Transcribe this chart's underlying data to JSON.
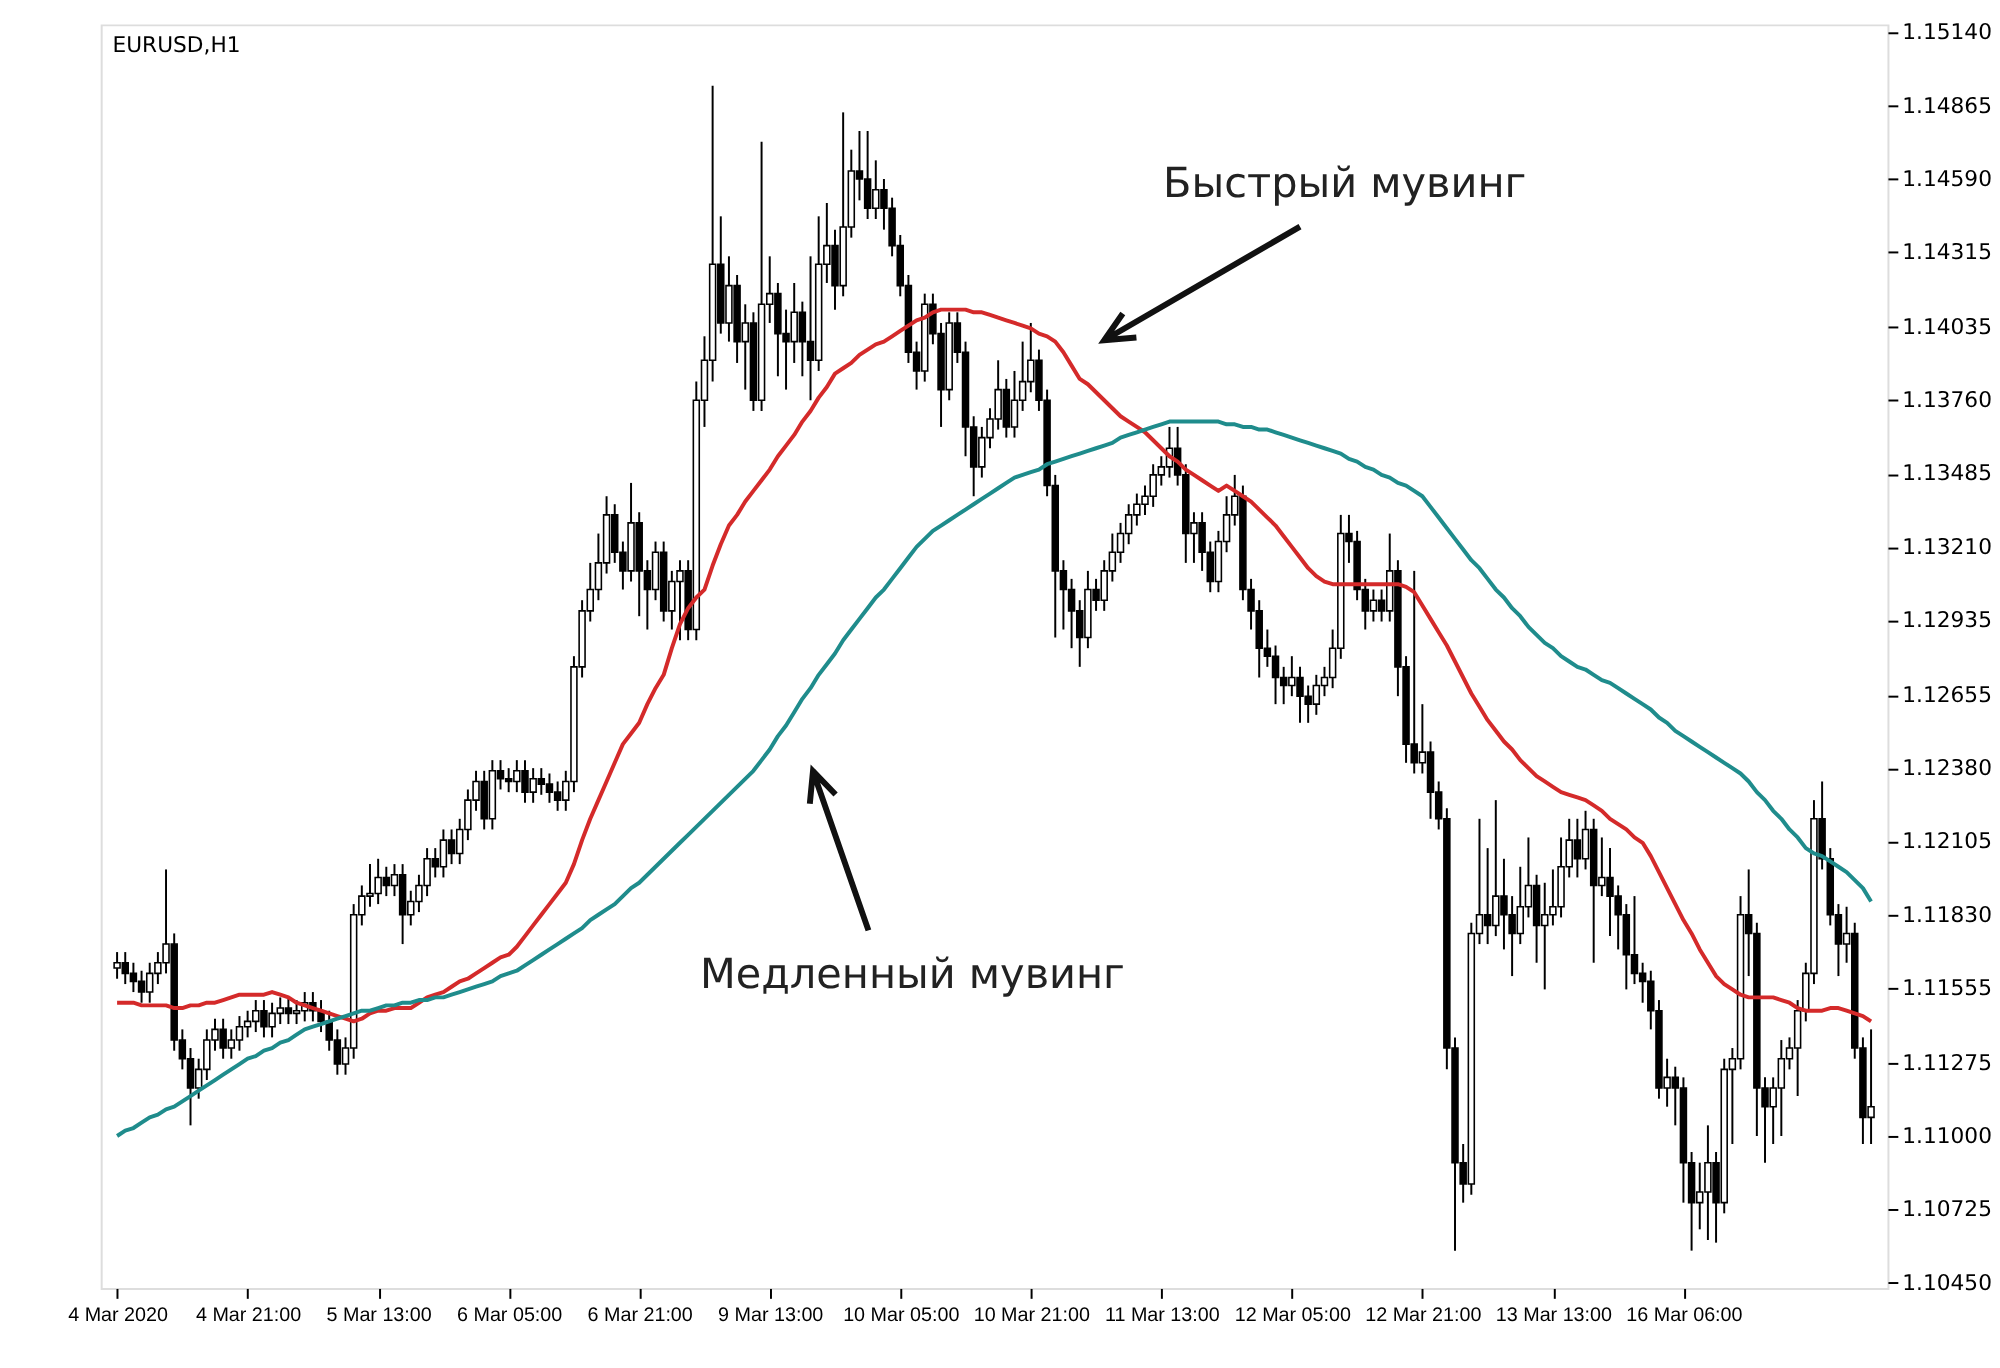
{
  "chart_data": {
    "type": "candlestick",
    "title": "EURUSD,H1",
    "annotations": [
      "Быстрый мувинг",
      "Медленный мувинг"
    ],
    "categories": [
      "4 Mar 2020",
      null,
      null,
      null,
      null,
      null,
      null,
      null,
      null,
      null,
      null,
      null,
      null,
      null,
      null,
      null,
      "4 Mar 21:00",
      null,
      null,
      null,
      null,
      null,
      null,
      null,
      null,
      null,
      null,
      null,
      null,
      null,
      null,
      null,
      "5 Mar 13:00",
      null,
      null,
      null,
      null,
      null,
      null,
      null,
      null,
      null,
      null,
      null,
      null,
      null,
      null,
      null,
      "6 Mar 05:00",
      null,
      null,
      null,
      null,
      null,
      null,
      null,
      null,
      null,
      null,
      null,
      null,
      null,
      null,
      null,
      "6 Mar 21:00",
      null,
      null,
      null,
      null,
      null,
      null,
      null,
      null,
      null,
      null,
      null,
      null,
      null,
      null,
      null,
      "9 Mar 13:00",
      null,
      null,
      null,
      null,
      null,
      null,
      null,
      null,
      null,
      null,
      null,
      null,
      null,
      null,
      null,
      "10 Mar 05:00",
      null,
      null,
      null,
      null,
      null,
      null,
      null,
      null,
      null,
      null,
      null,
      null,
      null,
      null,
      null,
      "10 Mar 21:00",
      null,
      null,
      null,
      null,
      null,
      null,
      null,
      null,
      null,
      null,
      null,
      null,
      null,
      null,
      null,
      "11 Mar 13:00",
      null,
      null,
      null,
      null,
      null,
      null,
      null,
      null,
      null,
      null,
      null,
      null,
      null,
      null,
      null,
      "12 Mar 05:00",
      null,
      null,
      null,
      null,
      null,
      null,
      null,
      null,
      null,
      null,
      null,
      null,
      null,
      null,
      null,
      "12 Mar 21:00",
      null,
      null,
      null,
      null,
      null,
      null,
      null,
      null,
      null,
      null,
      null,
      null,
      null,
      null,
      null,
      "13 Mar 13:00",
      null,
      null,
      null,
      null,
      null,
      null,
      null,
      null,
      null,
      null,
      null,
      null,
      null,
      null,
      null,
      "16 Mar 06:00",
      null,
      null,
      null,
      null,
      null,
      null,
      null,
      null,
      null,
      null,
      null,
      null,
      null,
      null,
      null,
      null,
      null,
      null,
      null,
      null,
      null,
      null,
      null
    ],
    "ohlc": [
      [
        1.1163,
        1.1169,
        1.1159,
        1.1165
      ],
      [
        1.1165,
        1.1169,
        1.1157,
        1.1161
      ],
      [
        1.1161,
        1.1165,
        1.1154,
        1.1158
      ],
      [
        1.1158,
        1.1162,
        1.115,
        1.1154
      ],
      [
        1.1154,
        1.1165,
        1.115,
        1.1161
      ],
      [
        1.1161,
        1.1169,
        1.1157,
        1.1165
      ],
      [
        1.1165,
        1.12,
        1.1161,
        1.1172
      ],
      [
        1.1172,
        1.1176,
        1.1132,
        1.1136
      ],
      [
        1.1136,
        1.114,
        1.1125,
        1.1129
      ],
      [
        1.1129,
        1.1133,
        1.1104,
        1.1118
      ],
      [
        1.1118,
        1.1129,
        1.1114,
        1.1125
      ],
      [
        1.1125,
        1.114,
        1.1121,
        1.1136
      ],
      [
        1.1136,
        1.1144,
        1.1132,
        1.114
      ],
      [
        1.114,
        1.1144,
        1.1129,
        1.1133
      ],
      [
        1.1133,
        1.114,
        1.1129,
        1.1136
      ],
      [
        1.1136,
        1.1145,
        1.1132,
        1.1141
      ],
      [
        1.1141,
        1.1147,
        1.1137,
        1.1143
      ],
      [
        1.1143,
        1.1151,
        1.1139,
        1.1147
      ],
      [
        1.1147,
        1.1151,
        1.1137,
        1.1141
      ],
      [
        1.1141,
        1.115,
        1.1137,
        1.1146
      ],
      [
        1.1146,
        1.1152,
        1.1142,
        1.1148
      ],
      [
        1.1148,
        1.1152,
        1.1142,
        1.1146
      ],
      [
        1.1146,
        1.1151,
        1.1142,
        1.1147
      ],
      [
        1.1147,
        1.1154,
        1.1143,
        1.115
      ],
      [
        1.115,
        1.1154,
        1.1143,
        1.1147
      ],
      [
        1.1147,
        1.1151,
        1.1139,
        1.1143
      ],
      [
        1.1143,
        1.1147,
        1.1132,
        1.1136
      ],
      [
        1.1136,
        1.114,
        1.1123,
        1.1127
      ],
      [
        1.1127,
        1.1137,
        1.1123,
        1.1133
      ],
      [
        1.1133,
        1.1187,
        1.1129,
        1.1183
      ],
      [
        1.1183,
        1.1194,
        1.1179,
        1.119
      ],
      [
        1.119,
        1.1202,
        1.1186,
        1.1191
      ],
      [
        1.1191,
        1.1204,
        1.1187,
        1.1197
      ],
      [
        1.1197,
        1.1201,
        1.119,
        1.1194
      ],
      [
        1.1194,
        1.1202,
        1.119,
        1.1198
      ],
      [
        1.1198,
        1.1202,
        1.1172,
        1.1183
      ],
      [
        1.1183,
        1.1192,
        1.1179,
        1.1188
      ],
      [
        1.1188,
        1.1198,
        1.1184,
        1.1194
      ],
      [
        1.1194,
        1.1208,
        1.119,
        1.1204
      ],
      [
        1.1204,
        1.1208,
        1.1197,
        1.1201
      ],
      [
        1.1201,
        1.1215,
        1.1197,
        1.1211
      ],
      [
        1.1211,
        1.1215,
        1.1202,
        1.1206
      ],
      [
        1.1206,
        1.1219,
        1.1202,
        1.1215
      ],
      [
        1.1215,
        1.123,
        1.1211,
        1.1226
      ],
      [
        1.1226,
        1.1237,
        1.1222,
        1.1233
      ],
      [
        1.1233,
        1.1237,
        1.1215,
        1.1219
      ],
      [
        1.1219,
        1.1241,
        1.1215,
        1.1237
      ],
      [
        1.1237,
        1.1241,
        1.123,
        1.1234
      ],
      [
        1.1234,
        1.1238,
        1.1229,
        1.1233
      ],
      [
        1.1233,
        1.1241,
        1.1229,
        1.1237
      ],
      [
        1.1237,
        1.1241,
        1.1225,
        1.1229
      ],
      [
        1.1229,
        1.1238,
        1.1225,
        1.1234
      ],
      [
        1.1234,
        1.1238,
        1.1228,
        1.1232
      ],
      [
        1.1232,
        1.1236,
        1.1225,
        1.1229
      ],
      [
        1.1229,
        1.1233,
        1.1222,
        1.1226
      ],
      [
        1.1226,
        1.1237,
        1.1222,
        1.1233
      ],
      [
        1.1233,
        1.128,
        1.1229,
        1.1276
      ],
      [
        1.1276,
        1.1301,
        1.1272,
        1.1297
      ],
      [
        1.1297,
        1.1315,
        1.1293,
        1.1305
      ],
      [
        1.1305,
        1.1326,
        1.1301,
        1.1315
      ],
      [
        1.1315,
        1.134,
        1.1311,
        1.1333
      ],
      [
        1.1333,
        1.1337,
        1.1315,
        1.1319
      ],
      [
        1.1319,
        1.1323,
        1.1305,
        1.1312
      ],
      [
        1.1312,
        1.1345,
        1.1308,
        1.133
      ],
      [
        1.133,
        1.1334,
        1.1295,
        1.1312
      ],
      [
        1.1312,
        1.1316,
        1.129,
        1.1305
      ],
      [
        1.1305,
        1.1323,
        1.1301,
        1.1319
      ],
      [
        1.1319,
        1.1323,
        1.1293,
        1.1297
      ],
      [
        1.1297,
        1.1312,
        1.129,
        1.1308
      ],
      [
        1.1308,
        1.1316,
        1.1286,
        1.1312
      ],
      [
        1.1312,
        1.1316,
        1.1286,
        1.129
      ],
      [
        1.129,
        1.1383,
        1.1286,
        1.1376
      ],
      [
        1.1376,
        1.14,
        1.1366,
        1.1391
      ],
      [
        1.1391,
        1.1494,
        1.1383,
        1.1427
      ],
      [
        1.1427,
        1.1445,
        1.1401,
        1.1405
      ],
      [
        1.1405,
        1.143,
        1.1398,
        1.1419
      ],
      [
        1.1419,
        1.1423,
        1.139,
        1.1398
      ],
      [
        1.1398,
        1.1412,
        1.138,
        1.1405
      ],
      [
        1.1405,
        1.1409,
        1.1372,
        1.1376
      ],
      [
        1.1376,
        1.1473,
        1.1372,
        1.1412
      ],
      [
        1.1412,
        1.143,
        1.1405,
        1.1416
      ],
      [
        1.1416,
        1.142,
        1.1385,
        1.1401
      ],
      [
        1.1401,
        1.141,
        1.138,
        1.1398
      ],
      [
        1.1398,
        1.142,
        1.139,
        1.1409
      ],
      [
        1.1409,
        1.1413,
        1.1385,
        1.1398
      ],
      [
        1.1398,
        1.143,
        1.1376,
        1.1391
      ],
      [
        1.1391,
        1.1445,
        1.1387,
        1.1427
      ],
      [
        1.1427,
        1.145,
        1.142,
        1.1434
      ],
      [
        1.1434,
        1.144,
        1.141,
        1.1419
      ],
      [
        1.1419,
        1.1484,
        1.1415,
        1.1441
      ],
      [
        1.1441,
        1.147,
        1.1437,
        1.1462
      ],
      [
        1.1462,
        1.1477,
        1.1451,
        1.1459
      ],
      [
        1.1459,
        1.1477,
        1.1444,
        1.1448
      ],
      [
        1.1448,
        1.1466,
        1.1444,
        1.1455
      ],
      [
        1.1455,
        1.1459,
        1.144,
        1.1448
      ],
      [
        1.1448,
        1.1452,
        1.143,
        1.1434
      ],
      [
        1.1434,
        1.1438,
        1.1415,
        1.1419
      ],
      [
        1.1419,
        1.1423,
        1.139,
        1.1394
      ],
      [
        1.1394,
        1.1398,
        1.138,
        1.1387
      ],
      [
        1.1387,
        1.1416,
        1.1383,
        1.1412
      ],
      [
        1.1412,
        1.1416,
        1.1397,
        1.1401
      ],
      [
        1.1401,
        1.1405,
        1.1366,
        1.138
      ],
      [
        1.138,
        1.1409,
        1.1376,
        1.1405
      ],
      [
        1.1405,
        1.1409,
        1.139,
        1.1394
      ],
      [
        1.1394,
        1.1398,
        1.1355,
        1.1366
      ],
      [
        1.1366,
        1.137,
        1.134,
        1.1351
      ],
      [
        1.1351,
        1.1366,
        1.1347,
        1.1362
      ],
      [
        1.1362,
        1.1373,
        1.1358,
        1.1369
      ],
      [
        1.1369,
        1.1391,
        1.1365,
        1.138
      ],
      [
        1.138,
        1.1384,
        1.1362,
        1.1366
      ],
      [
        1.1366,
        1.1387,
        1.1362,
        1.1376
      ],
      [
        1.1376,
        1.1398,
        1.1372,
        1.1383
      ],
      [
        1.1383,
        1.1405,
        1.1379,
        1.1391
      ],
      [
        1.1391,
        1.1395,
        1.1372,
        1.1376
      ],
      [
        1.1376,
        1.138,
        1.134,
        1.1344
      ],
      [
        1.1344,
        1.1348,
        1.1287,
        1.1312
      ],
      [
        1.1312,
        1.1316,
        1.129,
        1.1305
      ],
      [
        1.1305,
        1.1309,
        1.1283,
        1.1297
      ],
      [
        1.1297,
        1.1301,
        1.1276,
        1.1287
      ],
      [
        1.1287,
        1.1312,
        1.1283,
        1.1305
      ],
      [
        1.1305,
        1.1309,
        1.1297,
        1.1301
      ],
      [
        1.1301,
        1.1316,
        1.1297,
        1.1312
      ],
      [
        1.1312,
        1.1326,
        1.1308,
        1.1319
      ],
      [
        1.1319,
        1.133,
        1.1315,
        1.1326
      ],
      [
        1.1326,
        1.1337,
        1.1322,
        1.1333
      ],
      [
        1.1333,
        1.1341,
        1.1329,
        1.1337
      ],
      [
        1.1337,
        1.1344,
        1.1333,
        1.134
      ],
      [
        1.134,
        1.1352,
        1.1336,
        1.1348
      ],
      [
        1.1348,
        1.1355,
        1.1344,
        1.1351
      ],
      [
        1.1351,
        1.1366,
        1.1347,
        1.1358
      ],
      [
        1.1358,
        1.1366,
        1.1344,
        1.1348
      ],
      [
        1.1348,
        1.1352,
        1.1315,
        1.1326
      ],
      [
        1.1326,
        1.1334,
        1.1315,
        1.133
      ],
      [
        1.133,
        1.1334,
        1.1312,
        1.1319
      ],
      [
        1.1319,
        1.1323,
        1.1304,
        1.1308
      ],
      [
        1.1308,
        1.1327,
        1.1304,
        1.1323
      ],
      [
        1.1323,
        1.134,
        1.1319,
        1.1333
      ],
      [
        1.1333,
        1.1348,
        1.1329,
        1.134
      ],
      [
        1.134,
        1.1344,
        1.1301,
        1.1305
      ],
      [
        1.1305,
        1.1309,
        1.129,
        1.1297
      ],
      [
        1.1297,
        1.1301,
        1.1272,
        1.1283
      ],
      [
        1.1283,
        1.129,
        1.1276,
        1.128
      ],
      [
        1.128,
        1.1284,
        1.1262,
        1.1272
      ],
      [
        1.1272,
        1.1276,
        1.1262,
        1.1269
      ],
      [
        1.1269,
        1.128,
        1.1265,
        1.1272
      ],
      [
        1.1272,
        1.1276,
        1.1255,
        1.1265
      ],
      [
        1.1265,
        1.1269,
        1.1255,
        1.1262
      ],
      [
        1.1262,
        1.1273,
        1.1258,
        1.1269
      ],
      [
        1.1269,
        1.1276,
        1.1265,
        1.1272
      ],
      [
        1.1272,
        1.129,
        1.1268,
        1.1283
      ],
      [
        1.1283,
        1.1333,
        1.1279,
        1.1326
      ],
      [
        1.1326,
        1.1333,
        1.1315,
        1.1323
      ],
      [
        1.1323,
        1.1327,
        1.1301,
        1.1305
      ],
      [
        1.1305,
        1.1309,
        1.129,
        1.1297
      ],
      [
        1.1297,
        1.1305,
        1.1293,
        1.1301
      ],
      [
        1.1301,
        1.1305,
        1.1293,
        1.1297
      ],
      [
        1.1297,
        1.1326,
        1.1293,
        1.1312
      ],
      [
        1.1312,
        1.1316,
        1.1265,
        1.1276
      ],
      [
        1.1276,
        1.128,
        1.124,
        1.1247
      ],
      [
        1.1247,
        1.1312,
        1.1236,
        1.124
      ],
      [
        1.124,
        1.1262,
        1.1236,
        1.1244
      ],
      [
        1.1244,
        1.1248,
        1.1219,
        1.1229
      ],
      [
        1.1229,
        1.1233,
        1.1215,
        1.1219
      ],
      [
        1.1219,
        1.1223,
        1.1125,
        1.1133
      ],
      [
        1.1133,
        1.1137,
        1.1057,
        1.109
      ],
      [
        1.109,
        1.1097,
        1.1075,
        1.1082
      ],
      [
        1.1082,
        1.118,
        1.1078,
        1.1176
      ],
      [
        1.1176,
        1.1219,
        1.1172,
        1.1183
      ],
      [
        1.1183,
        1.1208,
        1.1172,
        1.1179
      ],
      [
        1.1179,
        1.1226,
        1.1175,
        1.119
      ],
      [
        1.119,
        1.1204,
        1.117,
        1.1183
      ],
      [
        1.1183,
        1.119,
        1.116,
        1.1176
      ],
      [
        1.1176,
        1.1201,
        1.1172,
        1.1186
      ],
      [
        1.1186,
        1.1212,
        1.1182,
        1.1194
      ],
      [
        1.1194,
        1.1198,
        1.1165,
        1.1179
      ],
      [
        1.1179,
        1.1195,
        1.1155,
        1.1183
      ],
      [
        1.1183,
        1.12,
        1.1179,
        1.1186
      ],
      [
        1.1186,
        1.1212,
        1.1182,
        1.1201
      ],
      [
        1.1201,
        1.1219,
        1.1197,
        1.1211
      ],
      [
        1.1211,
        1.1219,
        1.1197,
        1.1204
      ],
      [
        1.1204,
        1.1222,
        1.12,
        1.1215
      ],
      [
        1.1215,
        1.1219,
        1.1165,
        1.1194
      ],
      [
        1.1194,
        1.1212,
        1.119,
        1.1197
      ],
      [
        1.1197,
        1.1208,
        1.1175,
        1.119
      ],
      [
        1.119,
        1.1194,
        1.117,
        1.1183
      ],
      [
        1.1183,
        1.1187,
        1.1155,
        1.1168
      ],
      [
        1.1168,
        1.119,
        1.1157,
        1.1161
      ],
      [
        1.1161,
        1.1165,
        1.115,
        1.1158
      ],
      [
        1.1158,
        1.1162,
        1.114,
        1.1147
      ],
      [
        1.1147,
        1.1151,
        1.1114,
        1.1118
      ],
      [
        1.1118,
        1.1129,
        1.1111,
        1.1122
      ],
      [
        1.1122,
        1.1126,
        1.1104,
        1.1118
      ],
      [
        1.1118,
        1.1122,
        1.1075,
        1.109
      ],
      [
        1.109,
        1.1094,
        1.1057,
        1.1075
      ],
      [
        1.1075,
        1.109,
        1.1065,
        1.1079
      ],
      [
        1.1079,
        1.1104,
        1.1061,
        1.109
      ],
      [
        1.109,
        1.1094,
        1.106,
        1.1075
      ],
      [
        1.1075,
        1.1129,
        1.1071,
        1.1125
      ],
      [
        1.1125,
        1.1133,
        1.1097,
        1.1129
      ],
      [
        1.1129,
        1.119,
        1.1125,
        1.1183
      ],
      [
        1.1183,
        1.12,
        1.116,
        1.1176
      ],
      [
        1.1176,
        1.118,
        1.11,
        1.1118
      ],
      [
        1.1118,
        1.1122,
        1.109,
        1.1111
      ],
      [
        1.1111,
        1.1122,
        1.1097,
        1.1118
      ],
      [
        1.1118,
        1.1136,
        1.11,
        1.1129
      ],
      [
        1.1129,
        1.1137,
        1.1125,
        1.1133
      ],
      [
        1.1133,
        1.1151,
        1.1115,
        1.1147
      ],
      [
        1.1147,
        1.1165,
        1.1143,
        1.1161
      ],
      [
        1.1161,
        1.1226,
        1.1157,
        1.1219
      ],
      [
        1.1219,
        1.1233,
        1.12,
        1.1204
      ],
      [
        1.1204,
        1.1208,
        1.1179,
        1.1183
      ],
      [
        1.1183,
        1.1187,
        1.116,
        1.1172
      ],
      [
        1.1172,
        1.1186,
        1.1165,
        1.1176
      ],
      [
        1.1176,
        1.118,
        1.1129,
        1.1133
      ],
      [
        1.1133,
        1.1137,
        1.1097,
        1.1107
      ],
      [
        1.1107,
        1.114,
        1.1097,
        1.1111
      ]
    ],
    "series": [
      {
        "type": "line",
        "color": "#d42a2a",
        "values": [
          1.115,
          1.115,
          1.115,
          1.1149,
          1.1149,
          1.1149,
          1.1149,
          1.1148,
          1.1148,
          1.1149,
          1.1149,
          1.115,
          1.115,
          1.1151,
          1.1152,
          1.1153,
          1.1153,
          1.1153,
          1.1153,
          1.1154,
          1.1153,
          1.1152,
          1.115,
          1.1149,
          1.1148,
          1.1147,
          1.1146,
          1.1145,
          1.1144,
          1.1143,
          1.1144,
          1.1146,
          1.1147,
          1.1147,
          1.1148,
          1.1148,
          1.1148,
          1.115,
          1.1152,
          1.1153,
          1.1154,
          1.1156,
          1.1158,
          1.1159,
          1.1161,
          1.1163,
          1.1165,
          1.1167,
          1.1168,
          1.1171,
          1.1175,
          1.1179,
          1.1183,
          1.1187,
          1.1191,
          1.1195,
          1.1202,
          1.1211,
          1.1219,
          1.1226,
          1.1233,
          1.124,
          1.1247,
          1.1251,
          1.1255,
          1.1262,
          1.1268,
          1.1273,
          1.1283,
          1.1292,
          1.1298,
          1.1302,
          1.1305,
          1.1314,
          1.1322,
          1.1329,
          1.1333,
          1.1338,
          1.1342,
          1.1346,
          1.135,
          1.1355,
          1.1359,
          1.1363,
          1.1368,
          1.1372,
          1.1377,
          1.1381,
          1.1386,
          1.1388,
          1.139,
          1.1393,
          1.1395,
          1.1397,
          1.1398,
          1.14,
          1.1402,
          1.1404,
          1.1406,
          1.1407,
          1.1409,
          1.141,
          1.141,
          1.141,
          1.141,
          1.1409,
          1.1409,
          1.1408,
          1.1407,
          1.1406,
          1.1405,
          1.1404,
          1.1403,
          1.1401,
          1.14,
          1.1398,
          1.1394,
          1.1389,
          1.1384,
          1.1382,
          1.1379,
          1.1376,
          1.1373,
          1.137,
          1.1368,
          1.1366,
          1.1364,
          1.1361,
          1.1358,
          1.1355,
          1.1353,
          1.135,
          1.1348,
          1.1346,
          1.1344,
          1.1342,
          1.1344,
          1.1342,
          1.134,
          1.1338,
          1.1335,
          1.1332,
          1.1329,
          1.1325,
          1.1321,
          1.1317,
          1.1313,
          1.131,
          1.1308,
          1.1307,
          1.1307,
          1.1307,
          1.1307,
          1.1307,
          1.1307,
          1.1307,
          1.1307,
          1.1307,
          1.1306,
          1.1304,
          1.1299,
          1.1294,
          1.1289,
          1.1284,
          1.1278,
          1.1272,
          1.1266,
          1.1261,
          1.1256,
          1.1252,
          1.1248,
          1.1245,
          1.1241,
          1.1238,
          1.1235,
          1.1233,
          1.1231,
          1.1229,
          1.1228,
          1.1227,
          1.1226,
          1.1224,
          1.1222,
          1.1219,
          1.1217,
          1.1215,
          1.1212,
          1.121,
          1.1205,
          1.1199,
          1.1193,
          1.1187,
          1.1181,
          1.1176,
          1.117,
          1.1165,
          1.116,
          1.1157,
          1.1155,
          1.1153,
          1.1152,
          1.1152,
          1.1152,
          1.1152,
          1.1151,
          1.115,
          1.1148,
          1.1147,
          1.1147,
          1.1147,
          1.1148,
          1.1148,
          1.1147,
          1.1146,
          1.1145,
          1.1143
        ]
      },
      {
        "type": "line",
        "color": "#1f8c8c",
        "values": [
          1.11,
          1.1102,
          1.1103,
          1.1105,
          1.1107,
          1.1108,
          1.111,
          1.1111,
          1.1113,
          1.1115,
          1.1117,
          1.1119,
          1.1121,
          1.1123,
          1.1125,
          1.1127,
          1.1129,
          1.113,
          1.1132,
          1.1133,
          1.1135,
          1.1136,
          1.1138,
          1.114,
          1.1141,
          1.1142,
          1.1143,
          1.1144,
          1.1145,
          1.1146,
          1.1147,
          1.1147,
          1.1148,
          1.1149,
          1.1149,
          1.115,
          1.115,
          1.1151,
          1.1151,
          1.1152,
          1.1152,
          1.1153,
          1.1154,
          1.1155,
          1.1156,
          1.1157,
          1.1158,
          1.116,
          1.1161,
          1.1162,
          1.1164,
          1.1166,
          1.1168,
          1.117,
          1.1172,
          1.1174,
          1.1176,
          1.1178,
          1.1181,
          1.1183,
          1.1185,
          1.1187,
          1.119,
          1.1193,
          1.1195,
          1.1198,
          1.1201,
          1.1204,
          1.1207,
          1.121,
          1.1213,
          1.1216,
          1.1219,
          1.1222,
          1.1225,
          1.1228,
          1.1231,
          1.1234,
          1.1237,
          1.1241,
          1.1245,
          1.125,
          1.1254,
          1.1259,
          1.1264,
          1.1268,
          1.1273,
          1.1277,
          1.1281,
          1.1286,
          1.129,
          1.1294,
          1.1298,
          1.1302,
          1.1305,
          1.1309,
          1.1313,
          1.1317,
          1.1321,
          1.1324,
          1.1327,
          1.1329,
          1.1331,
          1.1333,
          1.1335,
          1.1337,
          1.1339,
          1.1341,
          1.1343,
          1.1345,
          1.1347,
          1.1348,
          1.1349,
          1.135,
          1.1352,
          1.1353,
          1.1354,
          1.1355,
          1.1356,
          1.1357,
          1.1358,
          1.1359,
          1.136,
          1.1362,
          1.1363,
          1.1364,
          1.1365,
          1.1366,
          1.1367,
          1.1368,
          1.1368,
          1.1368,
          1.1368,
          1.1368,
          1.1368,
          1.1368,
          1.1367,
          1.1367,
          1.1366,
          1.1366,
          1.1365,
          1.1365,
          1.1364,
          1.1363,
          1.1362,
          1.1361,
          1.136,
          1.1359,
          1.1358,
          1.1357,
          1.1356,
          1.1354,
          1.1353,
          1.1351,
          1.135,
          1.1348,
          1.1347,
          1.1345,
          1.1344,
          1.1342,
          1.134,
          1.1336,
          1.1332,
          1.1328,
          1.1324,
          1.132,
          1.1316,
          1.1313,
          1.1309,
          1.1305,
          1.1302,
          1.1298,
          1.1295,
          1.1291,
          1.1288,
          1.1285,
          1.1283,
          1.128,
          1.1278,
          1.1276,
          1.1275,
          1.1273,
          1.1271,
          1.127,
          1.1268,
          1.1266,
          1.1264,
          1.1262,
          1.126,
          1.1257,
          1.1255,
          1.1252,
          1.125,
          1.1248,
          1.1246,
          1.1244,
          1.1242,
          1.124,
          1.1238,
          1.1236,
          1.1233,
          1.1229,
          1.1226,
          1.1222,
          1.1219,
          1.1215,
          1.1212,
          1.1208,
          1.1206,
          1.1205,
          1.1203,
          1.1201,
          1.1199,
          1.1196,
          1.1193,
          1.1188
        ]
      }
    ],
    "ylim": [
      1.1043,
      1.1517
    ],
    "yticks": [
      {
        "value": 1.1514,
        "label": "1.15140"
      },
      {
        "value": 1.14865,
        "label": "1.14865"
      },
      {
        "value": 1.1459,
        "label": "1.14590"
      },
      {
        "value": 1.14315,
        "label": "1.14315"
      },
      {
        "value": 1.14035,
        "label": "1.14035"
      },
      {
        "value": 1.1376,
        "label": "1.13760"
      },
      {
        "value": 1.13485,
        "label": "1.13485"
      },
      {
        "value": 1.1321,
        "label": "1.13210"
      },
      {
        "value": 1.12935,
        "label": "1.12935"
      },
      {
        "value": 1.12655,
        "label": "1.12655"
      },
      {
        "value": 1.1238,
        "label": "1.12380"
      },
      {
        "value": 1.12105,
        "label": "1.12105"
      },
      {
        "value": 1.1183,
        "label": "1.11830"
      },
      {
        "value": 1.11555,
        "label": "1.11555"
      },
      {
        "value": 1.11275,
        "label": "1.11275"
      },
      {
        "value": 1.11,
        "label": "1.11000"
      },
      {
        "value": 1.10725,
        "label": "1.10725"
      },
      {
        "value": 1.1045,
        "label": "1.10450"
      }
    ],
    "grid": false,
    "legend": false,
    "line_style": "solid",
    "marker": "none"
  }
}
